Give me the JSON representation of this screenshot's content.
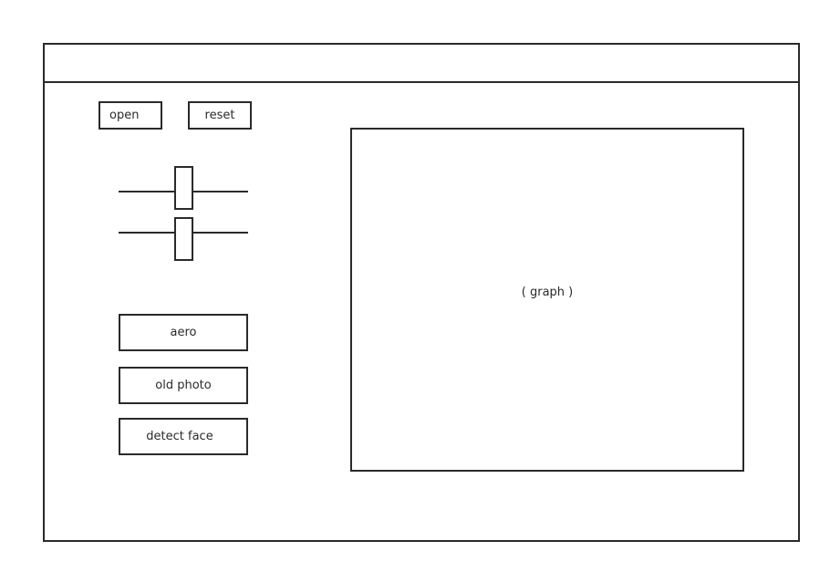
{
  "toolbar": {
    "open_label": "open",
    "reset_label": "reset"
  },
  "sliders": [
    {
      "name": "slider-1",
      "value_fraction": 0.5
    },
    {
      "name": "slider-2",
      "value_fraction": 0.5
    }
  ],
  "effects": {
    "aero_label": "aero",
    "old_photo_label": "old photo",
    "detect_face_label": "detect face"
  },
  "graph": {
    "placeholder": "( graph )"
  }
}
